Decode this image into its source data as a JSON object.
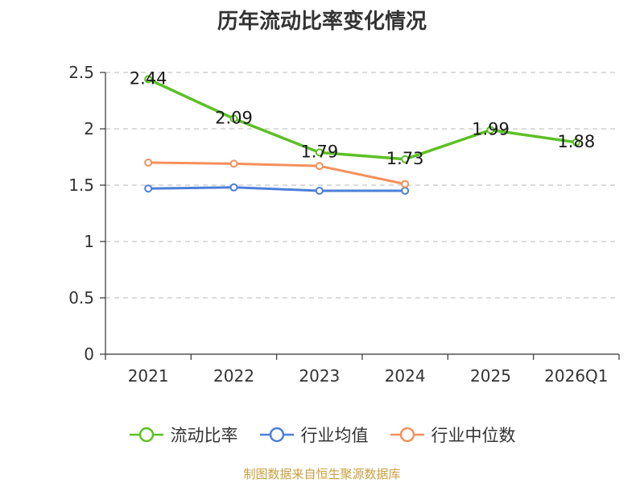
{
  "chart_data": {
    "type": "line",
    "title": "历年流动比率变化情况",
    "categories": [
      "2021",
      "2022",
      "2023",
      "2024",
      "2025",
      "2026Q1"
    ],
    "ylim": [
      0,
      2.5
    ],
    "yticks": [
      "0",
      "0.5",
      "1",
      "1.5",
      "2",
      "2.5"
    ],
    "grid": true,
    "legend_position": "bottom",
    "series": [
      {
        "name": "流动比率",
        "color": "#5cc025",
        "values": [
          2.44,
          2.09,
          1.79,
          1.73,
          1.99,
          1.88
        ],
        "labels": [
          "2.44",
          "2.09",
          "1.79",
          "1.73",
          "1.99",
          "1.88"
        ]
      },
      {
        "name": "行业均值",
        "color": "#4c7fd9",
        "values": [
          1.47,
          1.48,
          1.45,
          1.45,
          null,
          null
        ]
      },
      {
        "name": "行业中位数",
        "color": "#f5905a",
        "values": [
          1.7,
          1.69,
          1.67,
          1.51,
          null,
          null
        ]
      }
    ]
  },
  "source": {
    "text": "制图数据来自恒生聚源数据库",
    "color": "#c8a040"
  }
}
